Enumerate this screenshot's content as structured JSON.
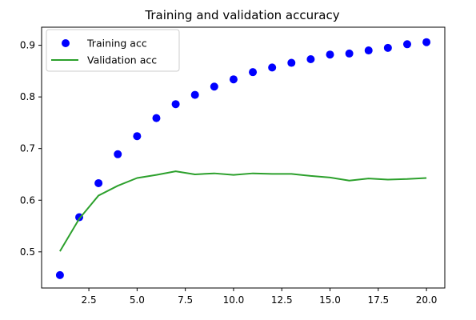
{
  "chart_data": {
    "type": "line",
    "title": "Training and validation accuracy",
    "xlabel": "",
    "ylabel": "",
    "xlim": [
      0.05,
      20.95
    ],
    "ylim": [
      0.43,
      0.935
    ],
    "x_ticks": [
      2.5,
      5.0,
      7.5,
      10.0,
      12.5,
      15.0,
      17.5,
      20.0
    ],
    "x_tick_labels": [
      "2.5",
      "5.0",
      "7.5",
      "10.0",
      "12.5",
      "15.0",
      "17.5",
      "20.0"
    ],
    "y_ticks": [
      0.5,
      0.6,
      0.7,
      0.8,
      0.9
    ],
    "y_tick_labels": [
      "0.5",
      "0.6",
      "0.7",
      "0.8",
      "0.9"
    ],
    "grid": false,
    "legend_position": "top-left",
    "x": [
      1,
      2,
      3,
      4,
      5,
      6,
      7,
      8,
      9,
      10,
      11,
      12,
      13,
      14,
      15,
      16,
      17,
      18,
      19,
      20
    ],
    "series": [
      {
        "name": "Training acc",
        "style": "scatter",
        "color": "#0000ff",
        "values": [
          0.455,
          0.567,
          0.633,
          0.689,
          0.724,
          0.759,
          0.786,
          0.804,
          0.82,
          0.834,
          0.848,
          0.857,
          0.866,
          0.873,
          0.882,
          0.884,
          0.89,
          0.895,
          0.902,
          0.906
        ]
      },
      {
        "name": "Validation acc",
        "style": "line",
        "color": "#2ca02c",
        "values": [
          0.501,
          0.564,
          0.609,
          0.628,
          0.643,
          0.649,
          0.656,
          0.65,
          0.652,
          0.649,
          0.652,
          0.651,
          0.651,
          0.647,
          0.644,
          0.638,
          0.642,
          0.64,
          0.641,
          0.643
        ]
      }
    ]
  }
}
